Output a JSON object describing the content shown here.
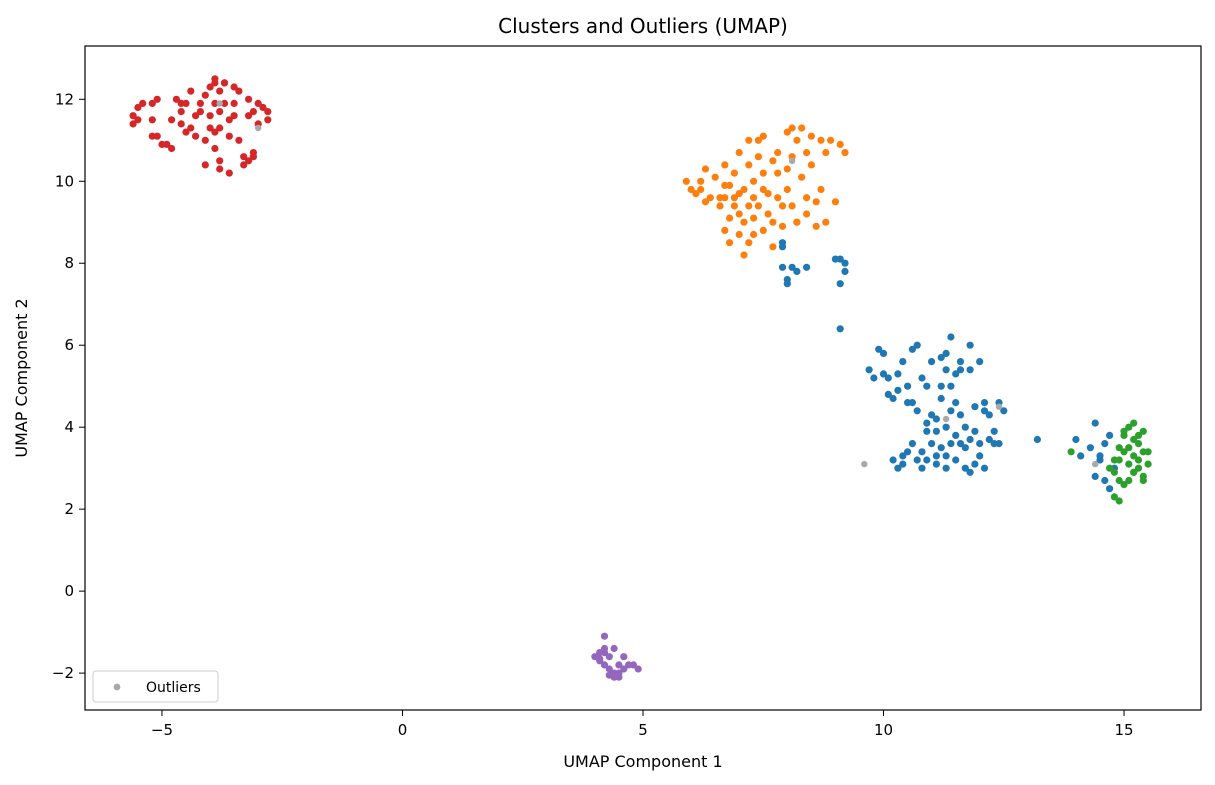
{
  "chart_data": {
    "type": "scatter",
    "title": "Clusters and Outliers (UMAP)",
    "xlabel": "UMAP Component 1",
    "ylabel": "UMAP Component 2",
    "xlim": [
      -6.6,
      16.6
    ],
    "ylim": [
      -2.9,
      13.3
    ],
    "xticks": [
      -5,
      0,
      5,
      10,
      15
    ],
    "xtick_labels": [
      "−5",
      "0",
      "5",
      "10",
      "15"
    ],
    "yticks": [
      -2,
      0,
      2,
      4,
      6,
      8,
      10,
      12
    ],
    "ytick_labels": [
      "−2",
      "0",
      "2",
      "4",
      "6",
      "8",
      "10",
      "12"
    ],
    "grid": false,
    "legend": {
      "position": "lower-left",
      "entries": [
        "Outliers"
      ]
    },
    "series": [
      {
        "color": "#d62728",
        "points": [
          [
            -5.6,
            11.4
          ],
          [
            -5.6,
            11.6
          ],
          [
            -5.5,
            11.8
          ],
          [
            -5.5,
            11.5
          ],
          [
            -5.4,
            11.9
          ],
          [
            -5.2,
            11.5
          ],
          [
            -5.2,
            11.9
          ],
          [
            -5.1,
            12.0
          ],
          [
            -5.2,
            11.1
          ],
          [
            -5.1,
            11.1
          ],
          [
            -5.0,
            10.9
          ],
          [
            -4.9,
            10.9
          ],
          [
            -4.8,
            10.8
          ],
          [
            -4.8,
            11.5
          ],
          [
            -4.7,
            12.0
          ],
          [
            -4.6,
            11.7
          ],
          [
            -4.6,
            11.9
          ],
          [
            -4.6,
            11.4
          ],
          [
            -4.5,
            11.2
          ],
          [
            -4.5,
            11.9
          ],
          [
            -4.4,
            12.2
          ],
          [
            -4.4,
            11.3
          ],
          [
            -4.3,
            11.6
          ],
          [
            -4.3,
            11.1
          ],
          [
            -4.2,
            11.7
          ],
          [
            -4.2,
            11.9
          ],
          [
            -4.1,
            12.1
          ],
          [
            -4.1,
            11.0
          ],
          [
            -4.0,
            12.3
          ],
          [
            -4.0,
            11.3
          ],
          [
            -4.0,
            11.6
          ],
          [
            -3.9,
            12.5
          ],
          [
            -3.9,
            12.4
          ],
          [
            -3.9,
            11.2
          ],
          [
            -3.9,
            10.8
          ],
          [
            -3.8,
            12.2
          ],
          [
            -3.8,
            11.7
          ],
          [
            -3.8,
            11.3
          ],
          [
            -3.8,
            10.5
          ],
          [
            -3.8,
            10.3
          ],
          [
            -3.7,
            12.4
          ],
          [
            -3.7,
            12.4
          ],
          [
            -3.7,
            11.9
          ],
          [
            -3.6,
            11.5
          ],
          [
            -3.6,
            11.1
          ],
          [
            -3.6,
            10.2
          ],
          [
            -3.5,
            12.3
          ],
          [
            -3.5,
            11.9
          ],
          [
            -3.5,
            11.6
          ],
          [
            -3.4,
            12.2
          ],
          [
            -3.4,
            11.0
          ],
          [
            -3.3,
            10.6
          ],
          [
            -3.3,
            10.4
          ],
          [
            -3.2,
            12.0
          ],
          [
            -3.2,
            11.6
          ],
          [
            -3.2,
            10.5
          ],
          [
            -3.1,
            10.6
          ],
          [
            -3.1,
            10.7
          ],
          [
            -3.1,
            11.7
          ],
          [
            -3.0,
            11.4
          ],
          [
            -3.0,
            11.9
          ],
          [
            -2.9,
            11.8
          ],
          [
            -2.8,
            11.5
          ],
          [
            -2.8,
            11.7
          ],
          [
            -3.9,
            11.9
          ],
          [
            -4.1,
            10.4
          ]
        ]
      },
      {
        "color": "#ff7f0e",
        "points": [
          [
            5.9,
            10.0
          ],
          [
            6.0,
            9.8
          ],
          [
            6.1,
            9.7
          ],
          [
            6.2,
            10.0
          ],
          [
            6.2,
            9.8
          ],
          [
            6.3,
            9.5
          ],
          [
            6.3,
            10.3
          ],
          [
            6.4,
            9.6
          ],
          [
            6.5,
            10.1
          ],
          [
            6.6,
            9.4
          ],
          [
            6.6,
            9.6
          ],
          [
            6.7,
            8.8
          ],
          [
            6.7,
            9.6
          ],
          [
            6.7,
            10.4
          ],
          [
            6.7,
            9.9
          ],
          [
            6.8,
            8.5
          ],
          [
            6.8,
            9.1
          ],
          [
            6.8,
            9.9
          ],
          [
            6.9,
            9.4
          ],
          [
            6.9,
            10.2
          ],
          [
            6.9,
            9.6
          ],
          [
            7.0,
            8.7
          ],
          [
            7.0,
            9.2
          ],
          [
            7.0,
            9.7
          ],
          [
            7.0,
            10.7
          ],
          [
            7.1,
            8.2
          ],
          [
            7.1,
            9.0
          ],
          [
            7.1,
            9.8
          ],
          [
            7.2,
            9.4
          ],
          [
            7.2,
            10.4
          ],
          [
            7.2,
            11.0
          ],
          [
            7.3,
            8.7
          ],
          [
            7.3,
            9.1
          ],
          [
            7.3,
            9.6
          ],
          [
            7.3,
            10.0
          ],
          [
            7.4,
            10.6
          ],
          [
            7.4,
            11.0
          ],
          [
            7.4,
            9.4
          ],
          [
            7.5,
            8.8
          ],
          [
            7.5,
            9.8
          ],
          [
            7.5,
            10.2
          ],
          [
            7.5,
            11.1
          ],
          [
            7.6,
            9.2
          ],
          [
            7.6,
            9.7
          ],
          [
            7.7,
            10.5
          ],
          [
            7.7,
            9.0
          ],
          [
            7.8,
            9.6
          ],
          [
            7.8,
            10.2
          ],
          [
            7.8,
            10.7
          ],
          [
            7.9,
            9.4
          ],
          [
            7.9,
            8.9
          ],
          [
            8.0,
            10.3
          ],
          [
            8.0,
            11.2
          ],
          [
            8.0,
            9.8
          ],
          [
            8.1,
            11.3
          ],
          [
            8.1,
            9.4
          ],
          [
            8.1,
            10.6
          ],
          [
            8.2,
            11.0
          ],
          [
            8.2,
            9.0
          ],
          [
            8.3,
            11.3
          ],
          [
            8.3,
            10.1
          ],
          [
            8.4,
            9.6
          ],
          [
            8.4,
            10.7
          ],
          [
            8.4,
            9.2
          ],
          [
            8.5,
            11.1
          ],
          [
            8.5,
            10.4
          ],
          [
            8.6,
            9.5
          ],
          [
            8.6,
            8.9
          ],
          [
            8.7,
            11.0
          ],
          [
            8.7,
            9.8
          ],
          [
            8.8,
            10.7
          ],
          [
            8.8,
            9.0
          ],
          [
            8.9,
            11.0
          ],
          [
            9.0,
            9.5
          ],
          [
            9.1,
            10.9
          ],
          [
            9.2,
            10.7
          ],
          [
            8.2,
            9.0
          ],
          [
            7.2,
            8.5
          ],
          [
            7.7,
            8.4
          ]
        ]
      },
      {
        "color": "#1f77b4",
        "points": [
          [
            7.9,
            8.5
          ],
          [
            7.9,
            8.4
          ],
          [
            7.9,
            7.9
          ],
          [
            8.0,
            7.6
          ],
          [
            8.0,
            7.5
          ],
          [
            8.1,
            7.9
          ],
          [
            8.2,
            7.8
          ],
          [
            8.4,
            7.9
          ],
          [
            9.0,
            8.1
          ],
          [
            9.1,
            8.1
          ],
          [
            9.2,
            8.0
          ],
          [
            9.2,
            7.8
          ],
          [
            9.1,
            7.5
          ],
          [
            9.1,
            6.4
          ],
          [
            9.7,
            5.4
          ],
          [
            9.8,
            5.2
          ],
          [
            9.9,
            5.9
          ],
          [
            10.0,
            5.3
          ],
          [
            10.0,
            5.8
          ],
          [
            10.1,
            4.8
          ],
          [
            10.1,
            5.2
          ],
          [
            10.2,
            4.7
          ],
          [
            10.2,
            3.2
          ],
          [
            10.3,
            3.0
          ],
          [
            10.3,
            4.9
          ],
          [
            10.3,
            5.3
          ],
          [
            10.4,
            3.3
          ],
          [
            10.4,
            5.6
          ],
          [
            10.4,
            3.1
          ],
          [
            10.5,
            4.6
          ],
          [
            10.5,
            5.0
          ],
          [
            10.5,
            3.4
          ],
          [
            10.6,
            4.6
          ],
          [
            10.6,
            5.9
          ],
          [
            10.6,
            3.6
          ],
          [
            10.7,
            3.2
          ],
          [
            10.7,
            4.4
          ],
          [
            10.7,
            6.0
          ],
          [
            10.8,
            3.0
          ],
          [
            10.8,
            3.4
          ],
          [
            10.8,
            5.2
          ],
          [
            10.9,
            3.9
          ],
          [
            10.9,
            4.1
          ],
          [
            10.9,
            3.2
          ],
          [
            11.0,
            3.6
          ],
          [
            11.0,
            4.3
          ],
          [
            11.0,
            5.6
          ],
          [
            11.1,
            3.3
          ],
          [
            11.1,
            3.1
          ],
          [
            11.1,
            3.9
          ],
          [
            11.2,
            4.7
          ],
          [
            11.2,
            5.0
          ],
          [
            11.2,
            3.5
          ],
          [
            11.2,
            5.7
          ],
          [
            11.3,
            3.3
          ],
          [
            11.3,
            4.0
          ],
          [
            11.3,
            5.4
          ],
          [
            11.3,
            5.8
          ],
          [
            11.4,
            3.6
          ],
          [
            11.4,
            4.4
          ],
          [
            11.4,
            5.0
          ],
          [
            11.4,
            6.2
          ],
          [
            11.5,
            3.8
          ],
          [
            11.5,
            4.6
          ],
          [
            11.5,
            5.3
          ],
          [
            11.5,
            3.2
          ],
          [
            11.6,
            3.6
          ],
          [
            11.6,
            4.3
          ],
          [
            11.6,
            5.6
          ],
          [
            11.7,
            3.5
          ],
          [
            11.7,
            4.0
          ],
          [
            11.7,
            3.0
          ],
          [
            11.8,
            2.9
          ],
          [
            11.8,
            3.7
          ],
          [
            11.8,
            5.4
          ],
          [
            11.8,
            6.0
          ],
          [
            11.9,
            3.1
          ],
          [
            11.9,
            4.5
          ],
          [
            11.9,
            3.9
          ],
          [
            12.0,
            5.6
          ],
          [
            12.0,
            3.3
          ],
          [
            12.0,
            3.6
          ],
          [
            12.1,
            4.4
          ],
          [
            12.1,
            3.0
          ],
          [
            12.1,
            4.6
          ],
          [
            12.2,
            3.7
          ],
          [
            12.2,
            4.3
          ],
          [
            12.3,
            3.9
          ],
          [
            12.3,
            3.6
          ],
          [
            12.4,
            4.6
          ],
          [
            12.5,
            4.4
          ],
          [
            12.4,
            3.6
          ],
          [
            13.2,
            3.7
          ],
          [
            11.1,
            4.2
          ],
          [
            10.9,
            5.0
          ],
          [
            11.6,
            5.4
          ],
          [
            11.3,
            3.0
          ]
        ]
      },
      {
        "color": "#1f77b4",
        "points": [
          [
            14.0,
            3.7
          ],
          [
            14.1,
            3.3
          ],
          [
            14.3,
            3.5
          ],
          [
            14.4,
            4.1
          ],
          [
            14.4,
            2.8
          ],
          [
            14.5,
            3.2
          ],
          [
            14.6,
            2.7
          ],
          [
            14.6,
            3.6
          ],
          [
            14.7,
            2.5
          ],
          [
            14.7,
            3.8
          ],
          [
            14.8,
            3.0
          ],
          [
            14.5,
            3.3
          ]
        ]
      },
      {
        "color": "#2ca02c",
        "points": [
          [
            13.9,
            3.4
          ],
          [
            14.7,
            3.0
          ],
          [
            14.8,
            2.3
          ],
          [
            14.8,
            2.9
          ],
          [
            14.9,
            2.2
          ],
          [
            14.9,
            3.2
          ],
          [
            15.0,
            3.8
          ],
          [
            15.0,
            2.6
          ],
          [
            15.0,
            3.4
          ],
          [
            15.1,
            2.7
          ],
          [
            15.1,
            3.1
          ],
          [
            15.1,
            4.0
          ],
          [
            15.1,
            3.5
          ],
          [
            15.2,
            2.9
          ],
          [
            15.2,
            3.7
          ],
          [
            15.2,
            4.1
          ],
          [
            15.2,
            3.3
          ],
          [
            15.3,
            3.0
          ],
          [
            15.3,
            3.8
          ],
          [
            15.3,
            3.6
          ],
          [
            15.4,
            2.8
          ],
          [
            15.4,
            3.4
          ],
          [
            15.4,
            3.9
          ],
          [
            15.5,
            3.1
          ],
          [
            15.5,
            3.4
          ],
          [
            15.4,
            2.7
          ],
          [
            14.9,
            3.5
          ],
          [
            15.0,
            3.9
          ],
          [
            14.8,
            3.2
          ],
          [
            15.3,
            3.2
          ],
          [
            14.9,
            2.7
          ],
          [
            15.2,
            2.9
          ]
        ]
      },
      {
        "color": "#9467bd",
        "points": [
          [
            4.0,
            -1.6
          ],
          [
            4.1,
            -1.5
          ],
          [
            4.1,
            -1.7
          ],
          [
            4.2,
            -1.8
          ],
          [
            4.2,
            -1.4
          ],
          [
            4.2,
            -1.5
          ],
          [
            4.2,
            -1.1
          ],
          [
            4.3,
            -1.6
          ],
          [
            4.3,
            -1.9
          ],
          [
            4.4,
            -2.0
          ],
          [
            4.4,
            -1.4
          ],
          [
            4.4,
            -2.1
          ],
          [
            4.5,
            -2.1
          ],
          [
            4.5,
            -2.0
          ],
          [
            4.5,
            -1.8
          ],
          [
            4.6,
            -1.6
          ],
          [
            4.6,
            -1.9
          ],
          [
            4.7,
            -1.8
          ],
          [
            4.8,
            -1.8
          ],
          [
            4.9,
            -1.9
          ],
          [
            4.3,
            -2.05
          ],
          [
            4.1,
            -1.65
          ]
        ]
      },
      {
        "name": "Outliers",
        "color": "#a9a9a9",
        "points": [
          [
            -3.8,
            11.9
          ],
          [
            -3.0,
            11.3
          ],
          [
            8.1,
            10.5
          ],
          [
            9.6,
            3.1
          ],
          [
            11.3,
            4.2
          ],
          [
            12.4,
            4.5
          ],
          [
            14.4,
            3.1
          ]
        ]
      }
    ]
  }
}
